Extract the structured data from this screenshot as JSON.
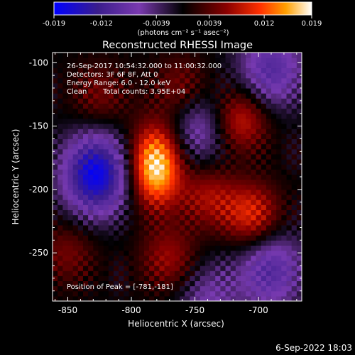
{
  "colorbar": {
    "tick_labels": [
      "-0.019",
      "-0.012",
      "-0.0039",
      "0.0039",
      "0.012",
      "0.019"
    ],
    "ticks": [
      -0.019,
      -0.012,
      -0.0039,
      0.0039,
      0.012,
      0.019
    ],
    "range": [
      -0.019,
      0.019
    ],
    "units_label": "(photons cm⁻² s⁻¹ asec⁻²)"
  },
  "chart_data": {
    "type": "heatmap",
    "title": "Reconstructed RHESSI Image",
    "xlabel": "Heliocentric X (arcsec)",
    "ylabel": "Heliocentric Y (arcsec)",
    "xlim": [
      -862,
      -666
    ],
    "ylim": [
      -288,
      -92
    ],
    "x_ticks": [
      -850,
      -800,
      -750,
      -700
    ],
    "y_ticks": [
      -100,
      -150,
      -200,
      -250
    ],
    "x_tick_labels": [
      "-850",
      "-800",
      "-750",
      "-700"
    ],
    "y_tick_labels": [
      "-100",
      "-150",
      "-200",
      "-250"
    ],
    "color_scale": [
      "#0000ff",
      "#3a1d8c",
      "#7a3ab0",
      "#000000",
      "#8a0000",
      "#ff3000",
      "#ffa000",
      "#ffffff"
    ],
    "value_range": [
      -0.019,
      0.019
    ],
    "peak": {
      "x": -781,
      "y": -181,
      "value": 0.019
    },
    "sources": [
      {
        "x": -781,
        "y": -181,
        "value": 0.019
      },
      {
        "x": -715,
        "y": -145,
        "value": 0.01
      },
      {
        "x": -705,
        "y": -220,
        "value": 0.01
      },
      {
        "x": -740,
        "y": -205,
        "value": 0.007
      },
      {
        "x": -770,
        "y": -255,
        "value": 0.007
      },
      {
        "x": -760,
        "y": -120,
        "value": 0.006
      },
      {
        "x": -825,
        "y": -125,
        "value": 0.005
      },
      {
        "x": -850,
        "y": -250,
        "value": 0.005
      }
    ],
    "negative_regions": [
      {
        "x": -828,
        "y": -188,
        "value": -0.018
      },
      {
        "x": -690,
        "y": -105,
        "value": -0.01
      },
      {
        "x": -690,
        "y": -263,
        "value": -0.01
      },
      {
        "x": -745,
        "y": -150,
        "value": -0.008
      },
      {
        "x": -740,
        "y": -285,
        "value": -0.006
      }
    ],
    "annotations": [
      "26-Sep-2017 10:54:32.000 to 11:00:32.000",
      "Detectors: 3F 6F 8F, Att 0",
      "Energy Range: 6.0 - 12.0 keV",
      "Clean",
      "Total counts: 3.95E+04",
      "Position of Peak = [-781,-181]"
    ]
  },
  "footer": {
    "timestamp": "6-Sep-2022 18:03"
  }
}
